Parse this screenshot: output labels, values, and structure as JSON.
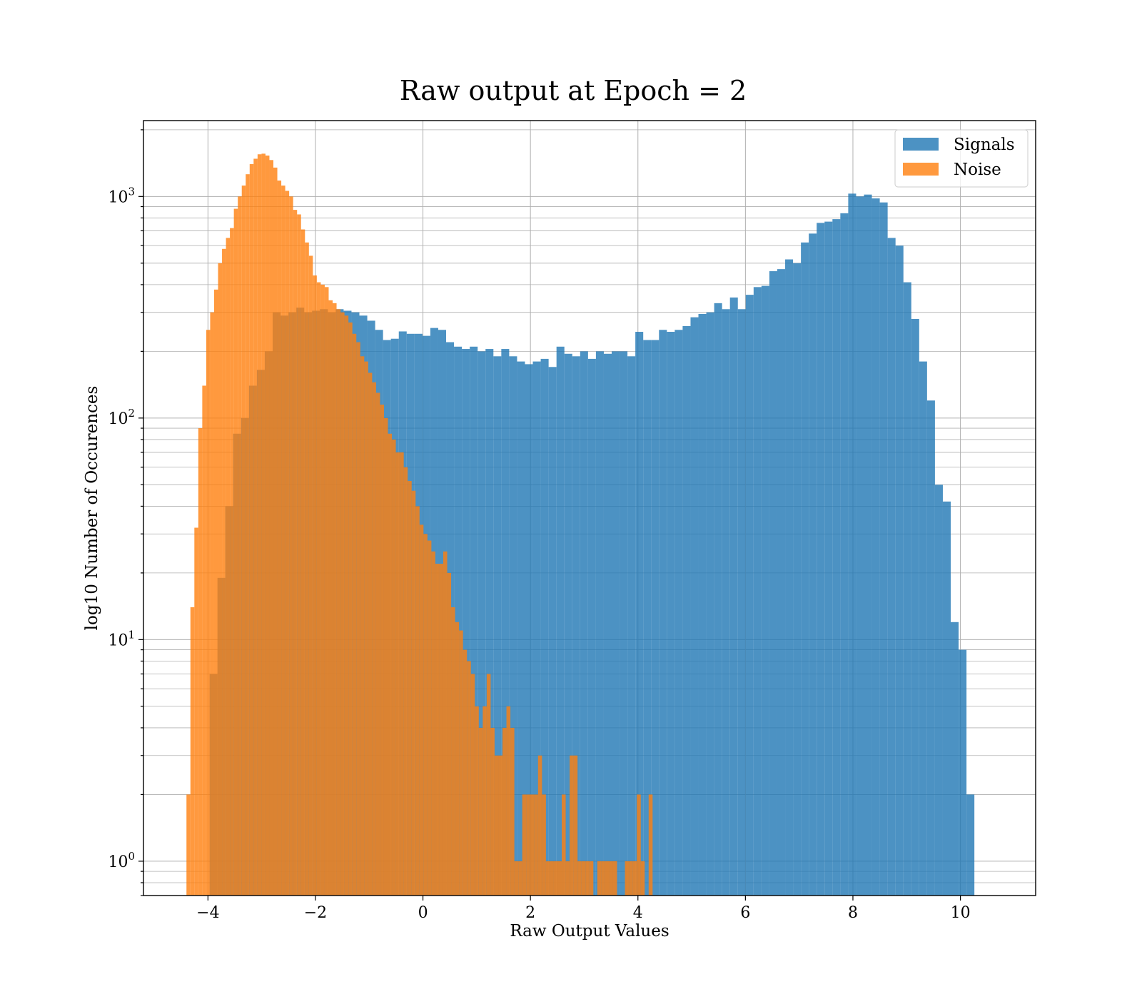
{
  "chart_data": {
    "type": "bar",
    "title": "Raw output at Epoch = 2",
    "xlabel": "Raw Output Values",
    "ylabel": "log10 Number of Occurences",
    "xlim": [
      -5.2,
      11.4
    ],
    "ylim": [
      0.7,
      2200
    ],
    "yscale": "log",
    "grid": true,
    "legend_position": "top-right",
    "xticks": [
      -4,
      -2,
      0,
      2,
      4,
      6,
      8,
      10
    ],
    "xtick_labels": [
      "−4",
      "−2",
      "0",
      "2",
      "4",
      "6",
      "8",
      "10"
    ],
    "yticks": [
      {
        "value": 1,
        "base": "10",
        "exp": "0"
      },
      {
        "value": 10,
        "base": "10",
        "exp": "1"
      },
      {
        "value": 100,
        "base": "10",
        "exp": "2"
      },
      {
        "value": 1000,
        "base": "10",
        "exp": "3"
      }
    ],
    "series": [
      {
        "name": "Signals",
        "color": "#1f77b4",
        "opacity": 0.8,
        "bin_start": -3.97,
        "bin_width": 0.1467,
        "values": [
          7,
          19,
          40,
          85,
          100,
          140,
          165,
          200,
          300,
          290,
          300,
          315,
          300,
          305,
          310,
          300,
          310,
          305,
          300,
          290,
          275,
          250,
          225,
          228,
          246,
          240,
          240,
          235,
          255,
          250,
          220,
          210,
          205,
          210,
          200,
          205,
          190,
          205,
          190,
          180,
          175,
          180,
          185,
          170,
          210,
          195,
          190,
          200,
          185,
          200,
          195,
          200,
          200,
          190,
          245,
          225,
          225,
          250,
          245,
          250,
          260,
          285,
          295,
          300,
          330,
          310,
          350,
          310,
          360,
          390,
          395,
          460,
          470,
          520,
          500,
          620,
          680,
          760,
          770,
          790,
          840,
          1030,
          1000,
          1020,
          980,
          940,
          650,
          600,
          410,
          280,
          180,
          120,
          50,
          42,
          12,
          9,
          2
        ]
      },
      {
        "name": "Noise",
        "color": "#ff7f0e",
        "opacity": 0.8,
        "bin_start": -4.4,
        "bin_width": 0.0735,
        "values": [
          2,
          14,
          32,
          90,
          140,
          250,
          300,
          380,
          500,
          580,
          650,
          720,
          880,
          1000,
          1120,
          1260,
          1400,
          1480,
          1550,
          1560,
          1530,
          1460,
          1350,
          1180,
          1120,
          1060,
          1000,
          870,
          830,
          710,
          620,
          540,
          440,
          410,
          400,
          390,
          340,
          330,
          310,
          300,
          290,
          270,
          240,
          220,
          190,
          180,
          160,
          145,
          130,
          115,
          100,
          85,
          80,
          70,
          70,
          60,
          52,
          47,
          40,
          33,
          30,
          28,
          25,
          22,
          22,
          25,
          20,
          14,
          12,
          11,
          9,
          8,
          7,
          5,
          4,
          5,
          7,
          4,
          3,
          3,
          4,
          5,
          4,
          1,
          1,
          2,
          2,
          2,
          2,
          3,
          2,
          1,
          1,
          1,
          1,
          2,
          1,
          3,
          3,
          1,
          1,
          1,
          1,
          0,
          1,
          1,
          1,
          1,
          1,
          0,
          0,
          1,
          1,
          1,
          2,
          1,
          0,
          2
        ]
      }
    ]
  }
}
